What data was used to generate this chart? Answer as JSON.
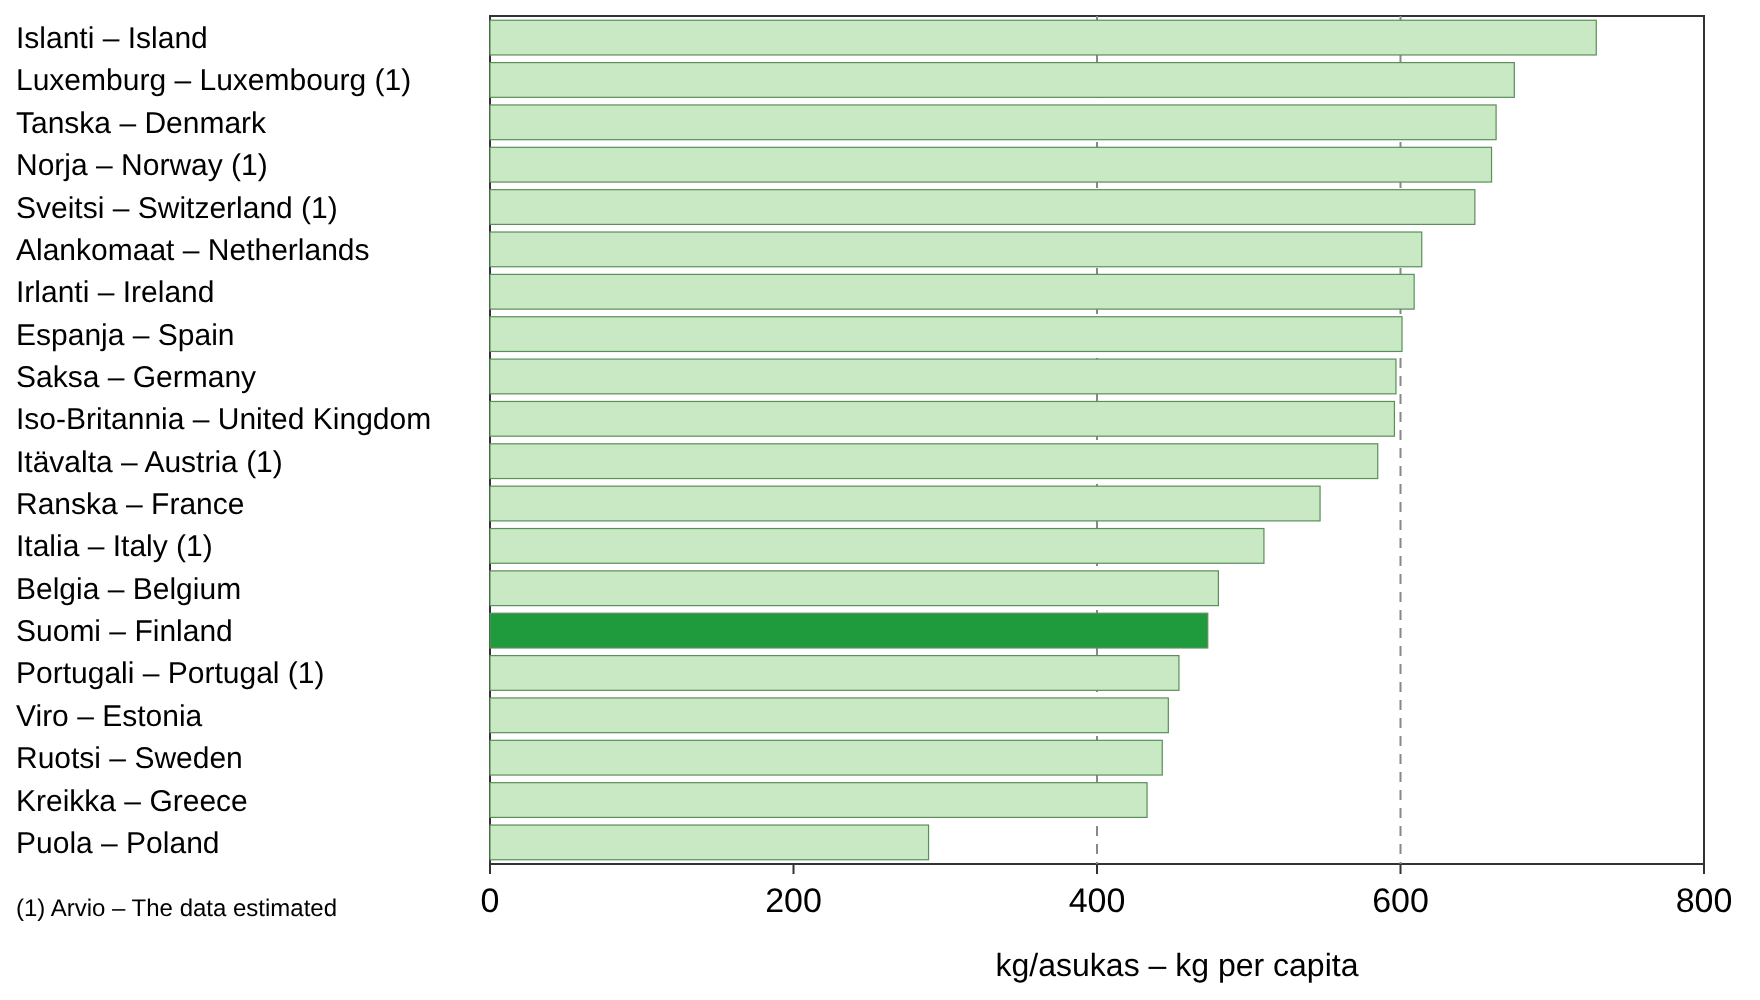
{
  "chart_data": {
    "type": "bar",
    "orientation": "horizontal",
    "categories": [
      "Islanti – Island",
      "Luxemburg – Luxembourg (1)",
      "Tanska – Denmark",
      "Norja – Norway (1)",
      "Sveitsi – Switzerland (1)",
      "Alankomaat – Netherlands",
      "Irlanti – Ireland",
      "Espanja – Spain",
      "Saksa – Germany",
      "Iso-Britannia – United Kingdom",
      "Itävalta – Austria (1)",
      "Ranska – France",
      "Italia – Italy (1)",
      "Belgia – Belgium",
      "Suomi – Finland",
      "Portugali  – Portugal (1)",
      "Viro – Estonia",
      "Ruotsi – Sweden",
      "Kreikka  – Greece",
      "Puola – Poland"
    ],
    "values": [
      729,
      675,
      663,
      660,
      649,
      614,
      609,
      601,
      597,
      596,
      585,
      547,
      510,
      480,
      473,
      454,
      447,
      443,
      433,
      289
    ],
    "colors": [
      "#c9e8c4",
      "#c9e8c4",
      "#c9e8c4",
      "#c9e8c4",
      "#c9e8c4",
      "#c9e8c4",
      "#c9e8c4",
      "#c9e8c4",
      "#c9e8c4",
      "#c9e8c4",
      "#c9e8c4",
      "#c9e8c4",
      "#c9e8c4",
      "#c9e8c4",
      "#1f9a3c",
      "#c9e8c4",
      "#c9e8c4",
      "#c9e8c4",
      "#c9e8c4",
      "#c9e8c4"
    ],
    "xlim": [
      0,
      800
    ],
    "xticks": [
      0,
      200,
      400,
      600,
      800
    ],
    "xlabel": "kg/asukas – kg per capita",
    "ref_lines": [
      {
        "axis": "x",
        "value": 400,
        "line_style": "dashed",
        "color": "#888888"
      },
      {
        "axis": "x",
        "value": 600,
        "line_style": "dashed",
        "color": "#888888"
      }
    ],
    "annotations": [
      "(1) Arvio  – The data estimated"
    ],
    "grid": false
  }
}
